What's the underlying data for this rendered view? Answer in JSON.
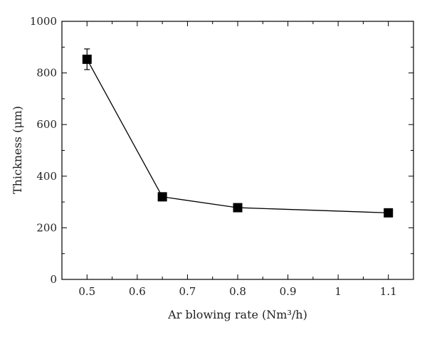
{
  "chart_data": {
    "type": "line",
    "xlabel": "Ar blowing rate (Nm³/h)",
    "ylabel": "Thickness (μm)",
    "xlim": [
      0.45,
      1.15
    ],
    "ylim": [
      0,
      1000
    ],
    "x_ticks": [
      0.5,
      0.6,
      0.7,
      0.8,
      0.9,
      1,
      1.1
    ],
    "x_tick_labels": [
      "0.5",
      "0.6",
      "0.7",
      "0.8",
      "0.9",
      "1",
      "1.1"
    ],
    "y_ticks": [
      0,
      200,
      400,
      600,
      800,
      1000
    ],
    "y_tick_labels": [
      "0",
      "200",
      "400",
      "600",
      "800",
      "1000"
    ],
    "grid": false,
    "marker": "square",
    "line_color": "#000000",
    "marker_color": "#000000",
    "series": [
      {
        "x": [
          0.5,
          0.65,
          0.8,
          1.1
        ],
        "y": [
          853,
          320,
          278,
          258
        ],
        "error": [
          40,
          0,
          0,
          0
        ]
      }
    ]
  }
}
